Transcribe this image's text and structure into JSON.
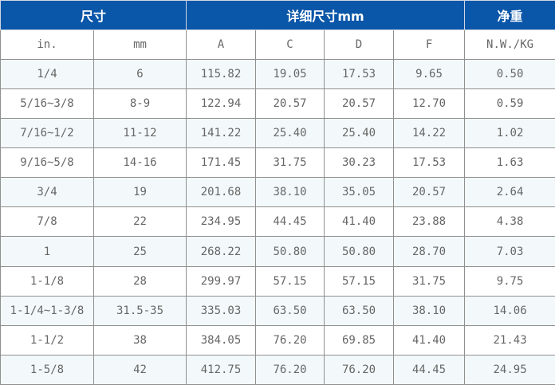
{
  "header": {
    "size": "尺寸",
    "detail": "详细尺寸mm",
    "weight": "净重"
  },
  "columns": [
    "in.",
    "mm",
    "A",
    "C",
    "D",
    "F",
    "N.W./KG"
  ],
  "rows": [
    [
      "1/4",
      "6",
      "115.82",
      "19.05",
      "17.53",
      "9.65",
      "0.50"
    ],
    [
      "5/16~3/8",
      "8-9",
      "122.94",
      "20.57",
      "20.57",
      "12.70",
      "0.59"
    ],
    [
      "7/16~1/2",
      "11-12",
      "141.22",
      "25.40",
      "25.40",
      "14.22",
      "1.02"
    ],
    [
      "9/16~5/8",
      "14-16",
      "171.45",
      "31.75",
      "30.23",
      "17.53",
      "1.63"
    ],
    [
      "3/4",
      "19",
      "201.68",
      "38.10",
      "35.05",
      "20.57",
      "2.64"
    ],
    [
      "7/8",
      "22",
      "234.95",
      "44.45",
      "41.40",
      "23.88",
      "4.38"
    ],
    [
      "1",
      "25",
      "268.22",
      "50.80",
      "50.80",
      "28.70",
      "7.03"
    ],
    [
      "1-1/8",
      "28",
      "299.97",
      "57.15",
      "57.15",
      "31.75",
      "9.75"
    ],
    [
      "1-1/4~1-3/8",
      "31.5-35",
      "335.03",
      "63.50",
      "63.50",
      "38.10",
      "14.06"
    ],
    [
      "1-1/2",
      "38",
      "384.05",
      "76.20",
      "69.85",
      "41.40",
      "21.43"
    ],
    [
      "1-5/8",
      "42",
      "412.75",
      "76.20",
      "76.20",
      "44.45",
      "24.95"
    ]
  ],
  "colors": {
    "header_bg": "#0a56a8",
    "alt_row_bg": "#f3f9fa"
  }
}
